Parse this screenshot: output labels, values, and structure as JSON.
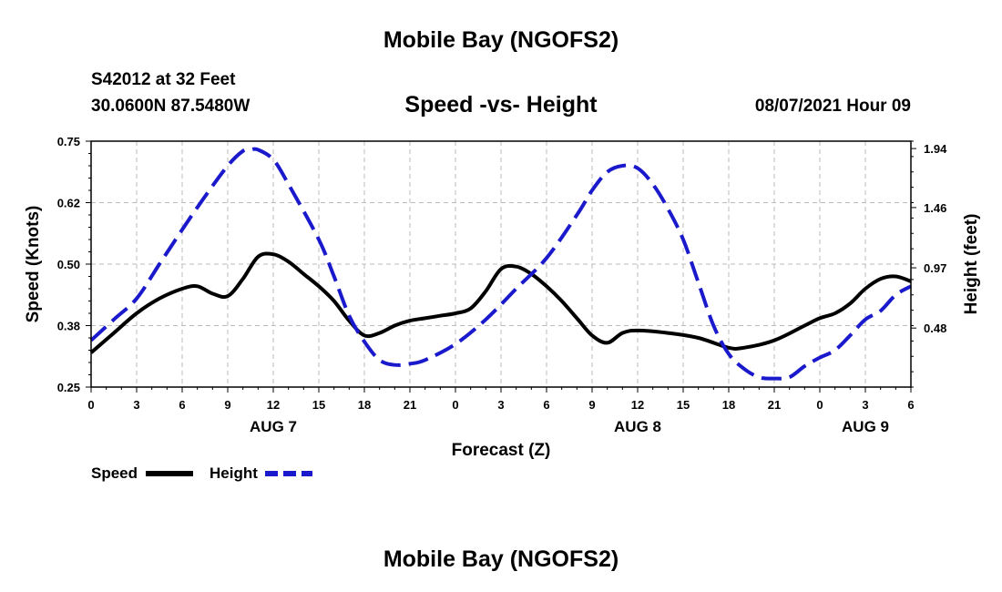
{
  "header": {
    "title": "Mobile Bay (NGOFS2)",
    "station": "S42012 at 32 Feet",
    "coords": "30.0600N  87.5480W",
    "subtitle": "Speed -vs- Height",
    "datetime": "08/07/2021 Hour 09"
  },
  "footer": {
    "title": "Mobile Bay (NGOFS2)"
  },
  "chart_data": {
    "type": "line",
    "title": "Speed -vs- Height",
    "xlabel": "Forecast (Z)",
    "ylabel_left": "Speed (Knots)",
    "ylabel_right": "Height (feet)",
    "x_unit": "forecast hours from Aug 7 00Z",
    "xlim": [
      0,
      54
    ],
    "ylim_left": [
      0.25,
      0.75
    ],
    "ylim_right": [
      0.0,
      2.0
    ],
    "grid": true,
    "x_ticks": [
      {
        "hour": 0,
        "label": "0"
      },
      {
        "hour": 3,
        "label": "3"
      },
      {
        "hour": 6,
        "label": "6"
      },
      {
        "hour": 9,
        "label": "9"
      },
      {
        "hour": 12,
        "label": "12"
      },
      {
        "hour": 15,
        "label": "15"
      },
      {
        "hour": 18,
        "label": "18"
      },
      {
        "hour": 21,
        "label": "21"
      },
      {
        "hour": 24,
        "label": "0"
      },
      {
        "hour": 27,
        "label": "3"
      },
      {
        "hour": 30,
        "label": "6"
      },
      {
        "hour": 33,
        "label": "9"
      },
      {
        "hour": 36,
        "label": "12"
      },
      {
        "hour": 39,
        "label": "15"
      },
      {
        "hour": 42,
        "label": "18"
      },
      {
        "hour": 45,
        "label": "21"
      },
      {
        "hour": 48,
        "label": "0"
      },
      {
        "hour": 51,
        "label": "3"
      },
      {
        "hour": 54,
        "label": "6"
      }
    ],
    "day_labels": [
      {
        "hour": 12,
        "label": "AUG 7"
      },
      {
        "hour": 36,
        "label": "AUG 8"
      },
      {
        "hour": 51,
        "label": "AUG 9"
      }
    ],
    "y_ticks_left": [
      {
        "value": 0.25,
        "label": "0.25"
      },
      {
        "value": 0.375,
        "label": "0.38"
      },
      {
        "value": 0.5,
        "label": "0.50"
      },
      {
        "value": 0.625,
        "label": "0.62"
      },
      {
        "value": 0.75,
        "label": "0.75"
      }
    ],
    "y_ticks_right": [
      {
        "value": 0.48,
        "label": "0.48"
      },
      {
        "value": 0.97,
        "label": "0.97"
      },
      {
        "value": 1.46,
        "label": "1.46"
      },
      {
        "value": 1.94,
        "label": "1.94"
      }
    ],
    "series": [
      {
        "name": "Speed",
        "axis": "left",
        "color": "#000000",
        "dash": "solid",
        "x": [
          0,
          1.5,
          3,
          4.5,
          6,
          7,
          8,
          9,
          10,
          11,
          12,
          13,
          14,
          15,
          16,
          17,
          18,
          19,
          20,
          21,
          22,
          23,
          24,
          25,
          26,
          27,
          28,
          29,
          30,
          31,
          32,
          33,
          34,
          35,
          36,
          38,
          40,
          42,
          43,
          45,
          47,
          48,
          49,
          50,
          51,
          52,
          53,
          54
        ],
        "values": [
          0.32,
          0.36,
          0.4,
          0.43,
          0.45,
          0.455,
          0.44,
          0.435,
          0.47,
          0.515,
          0.52,
          0.505,
          0.48,
          0.455,
          0.425,
          0.385,
          0.355,
          0.36,
          0.375,
          0.385,
          0.39,
          0.395,
          0.4,
          0.41,
          0.445,
          0.49,
          0.495,
          0.48,
          0.455,
          0.425,
          0.39,
          0.355,
          0.34,
          0.36,
          0.365,
          0.36,
          0.35,
          0.33,
          0.33,
          0.345,
          0.375,
          0.39,
          0.4,
          0.42,
          0.45,
          0.47,
          0.475,
          0.465
        ]
      },
      {
        "name": "Height",
        "axis": "right",
        "color": "#1a1acc",
        "dash": "dashed",
        "x": [
          0,
          1.5,
          3,
          4.5,
          6,
          7.5,
          9,
          10,
          10.5,
          11,
          12,
          13,
          15,
          16,
          17,
          18,
          19,
          20,
          21,
          22,
          24,
          26,
          28,
          30,
          32,
          33,
          34,
          35,
          36,
          37,
          38,
          39,
          40,
          41,
          42,
          43,
          44,
          45,
          46,
          47,
          48,
          49,
          50,
          51,
          52,
          53,
          54
        ],
        "values": [
          0.38,
          0.55,
          0.72,
          1.0,
          1.28,
          1.55,
          1.8,
          1.92,
          1.93,
          1.93,
          1.85,
          1.65,
          1.2,
          0.9,
          0.58,
          0.37,
          0.22,
          0.18,
          0.19,
          0.22,
          0.35,
          0.55,
          0.8,
          1.05,
          1.4,
          1.6,
          1.75,
          1.8,
          1.78,
          1.65,
          1.45,
          1.2,
          0.85,
          0.5,
          0.27,
          0.15,
          0.08,
          0.07,
          0.08,
          0.17,
          0.24,
          0.3,
          0.42,
          0.55,
          0.62,
          0.75,
          0.82
        ]
      }
    ]
  }
}
